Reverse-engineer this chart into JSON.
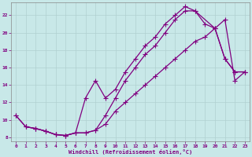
{
  "title": "",
  "xlabel": "Windchill (Refroidissement éolien,°C)",
  "ylabel": "",
  "bg_color": "#c8e8e8",
  "line_color": "#800080",
  "grid_color": "#b0d0d0",
  "xlim": [
    -0.5,
    23.5
  ],
  "ylim": [
    7.5,
    23.5
  ],
  "xticks": [
    0,
    1,
    2,
    3,
    4,
    5,
    6,
    7,
    8,
    9,
    10,
    11,
    12,
    13,
    14,
    15,
    16,
    17,
    18,
    19,
    20,
    21,
    22,
    23
  ],
  "yticks": [
    8,
    10,
    12,
    14,
    16,
    18,
    20,
    22
  ],
  "curve1_x": [
    0,
    1,
    2,
    3,
    4,
    5,
    6,
    7,
    8,
    9,
    10,
    11,
    12,
    13,
    14,
    15,
    16,
    17,
    18,
    19,
    20,
    21,
    22,
    23
  ],
  "curve1_y": [
    10.5,
    9.2,
    9.0,
    8.7,
    8.3,
    8.2,
    8.5,
    8.5,
    8.8,
    10.5,
    12.5,
    14.5,
    16.0,
    17.5,
    18.5,
    20.0,
    21.5,
    22.5,
    22.5,
    21.0,
    20.5,
    17.0,
    15.5,
    15.5
  ],
  "curve2_x": [
    1,
    2,
    3,
    4,
    5,
    6,
    7,
    8,
    9,
    10,
    11,
    12,
    13,
    14,
    15,
    16,
    17,
    18,
    20,
    21,
    22,
    23
  ],
  "curve2_y": [
    9.2,
    9.0,
    8.7,
    8.3,
    8.2,
    8.5,
    12.5,
    14.5,
    12.5,
    13.5,
    15.5,
    17.0,
    18.5,
    19.5,
    21.0,
    22.0,
    23.0,
    22.5,
    20.5,
    17.0,
    15.5,
    15.5
  ],
  "curve3_x": [
    0,
    1,
    2,
    3,
    4,
    5,
    6,
    7,
    8,
    9,
    10,
    11,
    12,
    13,
    14,
    15,
    16,
    17,
    18,
    19,
    20,
    21,
    22,
    23
  ],
  "curve3_y": [
    10.5,
    9.2,
    9.0,
    8.7,
    8.3,
    8.2,
    8.5,
    8.5,
    8.8,
    9.5,
    11.0,
    12.0,
    13.0,
    14.0,
    15.0,
    16.0,
    17.0,
    18.0,
    19.0,
    19.5,
    20.5,
    21.5,
    14.5,
    15.5
  ],
  "marker": "+",
  "markersize": 4,
  "linewidth": 0.9
}
